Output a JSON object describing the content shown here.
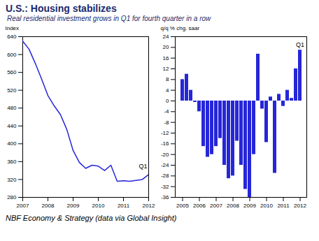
{
  "title": "U.S.: Housing stabilizes",
  "subtitle": "Real residential investment grows in Q1 for fourth quarter in a row",
  "caption": "NBF Economy & Strategy (data via Global Insight)",
  "chart_data": [
    {
      "type": "line",
      "ylabel": "Index",
      "x": [
        2007,
        2007.25,
        2007.5,
        2007.75,
        2008,
        2008.25,
        2008.5,
        2008.75,
        2009,
        2009.25,
        2009.5,
        2009.75,
        2010,
        2010.25,
        2010.5,
        2010.75,
        2011,
        2011.25,
        2011.5,
        2011.75,
        2012
      ],
      "values": [
        630,
        612,
        580,
        545,
        508,
        485,
        465,
        432,
        385,
        358,
        345,
        352,
        350,
        340,
        352,
        316,
        317,
        316,
        318,
        320,
        331
      ],
      "color": "#2626d9",
      "xlim": [
        2007,
        2012
      ],
      "xticks": [
        2007,
        2008,
        2009,
        2010,
        2011,
        2012
      ],
      "ylim": [
        280,
        640
      ],
      "yticks": [
        280,
        320,
        360,
        400,
        440,
        480,
        520,
        560,
        600,
        640
      ],
      "annotation": "Q1"
    },
    {
      "type": "bar",
      "ylabel": "q/q % chg. saar",
      "categories": [
        "2005",
        null,
        null,
        null,
        "2006",
        null,
        null,
        null,
        "2007",
        null,
        null,
        null,
        "2008",
        null,
        null,
        null,
        "2009",
        null,
        null,
        null,
        "2010",
        null,
        null,
        null,
        "2011",
        null,
        null,
        null,
        "2012"
      ],
      "values": [
        8,
        10,
        4,
        -0.5,
        -4,
        -17,
        -21,
        -20,
        -17,
        -14,
        -24,
        -29,
        -28,
        -15,
        -24,
        -33,
        -36,
        -20,
        17.5,
        -3,
        -15.5,
        1.5,
        -27,
        2.5,
        -2,
        4,
        1,
        12,
        19
      ],
      "color": "#2626d9",
      "ylim": [
        -36,
        24
      ],
      "yticks": [
        -36,
        -32,
        -28,
        -24,
        -20,
        -16,
        -12,
        -8,
        -4,
        0,
        4,
        8,
        12,
        16,
        20,
        24
      ],
      "annotation": "Q1"
    }
  ]
}
